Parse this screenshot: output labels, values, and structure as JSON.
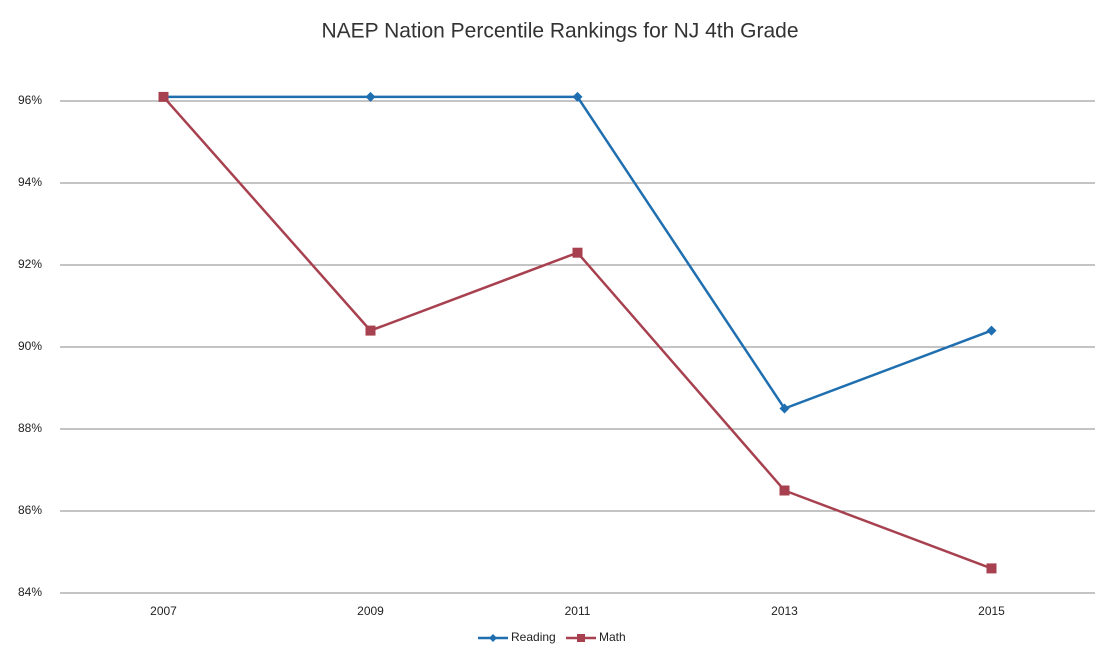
{
  "chart_data": {
    "type": "line",
    "title": "NAEP Nation Percentile Rankings for NJ 4th Grade",
    "categories": [
      "2007",
      "2009",
      "2011",
      "2013",
      "2015"
    ],
    "series": [
      {
        "name": "Reading",
        "color": "#1f6fb0",
        "marker": "diamond",
        "values": [
          96.1,
          96.1,
          96.1,
          88.5,
          90.4
        ]
      },
      {
        "name": "Math",
        "color": "#a8414f",
        "marker": "square",
        "values": [
          96.1,
          90.4,
          92.3,
          86.5,
          84.6
        ]
      }
    ],
    "ylim": [
      84,
      96
    ],
    "yticks": [
      {
        "value": 84,
        "label": "84%"
      },
      {
        "value": 86,
        "label": "86%"
      },
      {
        "value": 88,
        "label": "88%"
      },
      {
        "value": 90,
        "label": "90%"
      },
      {
        "value": 92,
        "label": "92%"
      },
      {
        "value": 94,
        "label": "94%"
      },
      {
        "value": 96,
        "label": "96%"
      }
    ],
    "grid": true,
    "legend": "bottom"
  }
}
